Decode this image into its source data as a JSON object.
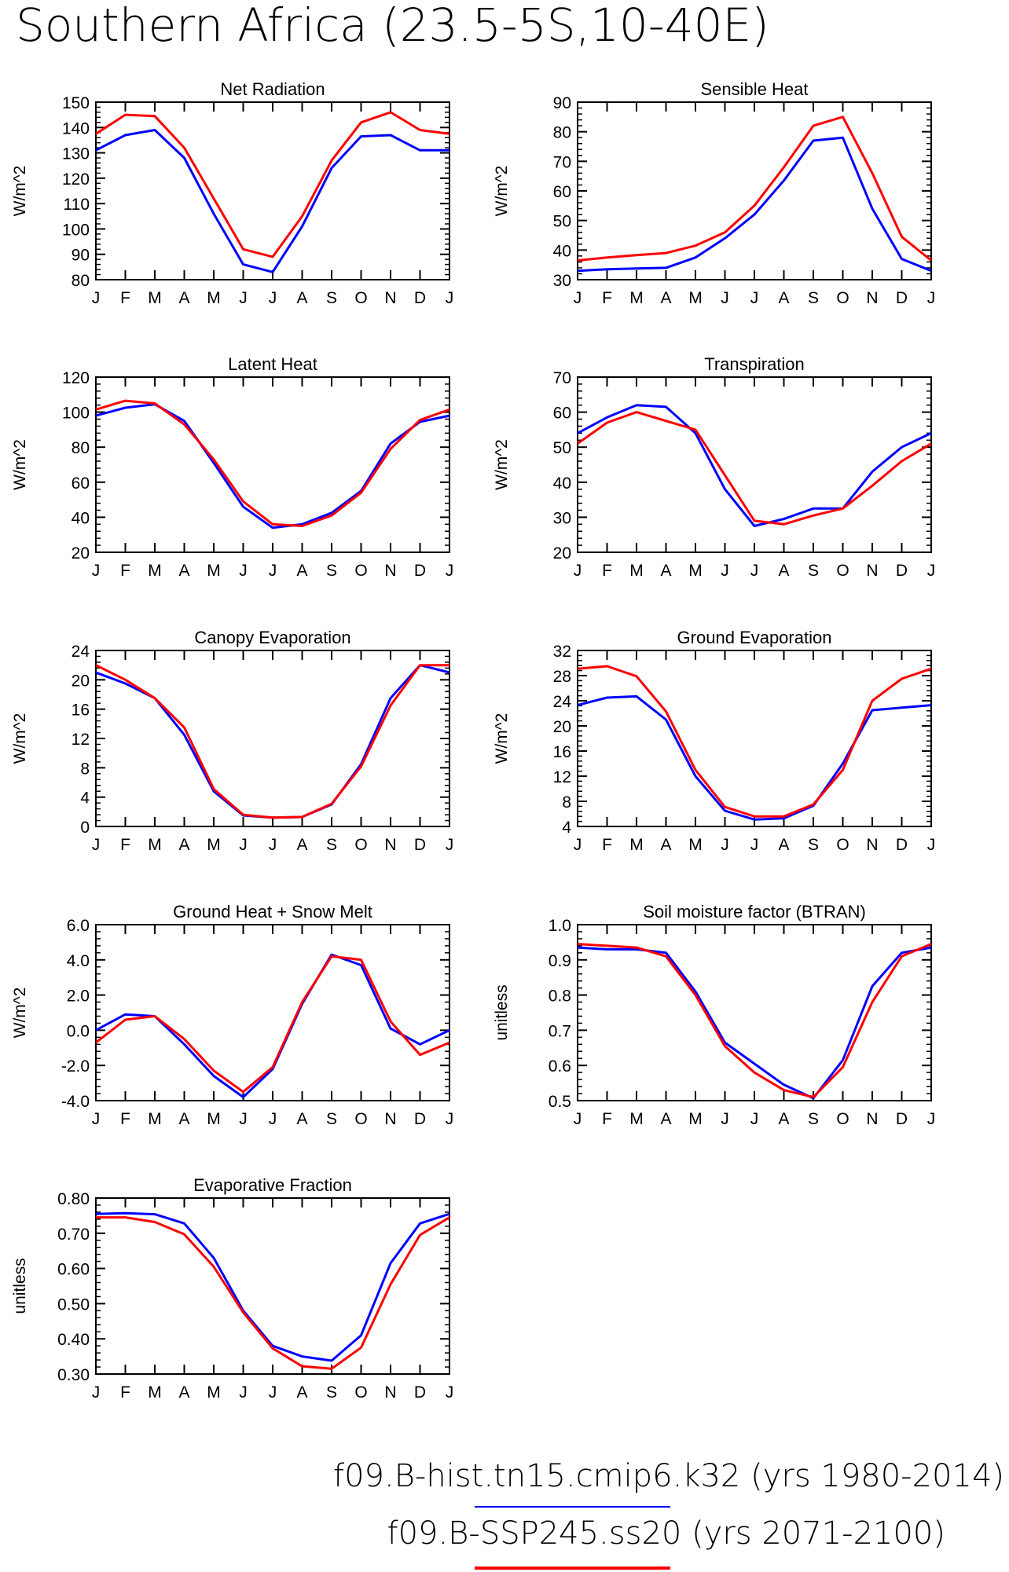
{
  "title": "Southern Africa (23.5-5S,10-40E)",
  "months": [
    "J",
    "F",
    "M",
    "A",
    "M",
    "J",
    "J",
    "A",
    "S",
    "O",
    "N",
    "D",
    "J"
  ],
  "legend": [
    {
      "label": "f09.B-hist.tn15.cmip6.k32 (yrs 1980-2014)",
      "color": "#0000ff"
    },
    {
      "label": "f09.B-SSP245.ss20 (yrs 2071-2100)",
      "color": "#ff0000"
    }
  ],
  "chart_data": [
    {
      "type": "line",
      "title": "Net Radiation",
      "ylabel": "W/m^2",
      "ylim": [
        80,
        150
      ],
      "yticks": [
        80,
        90,
        100,
        110,
        120,
        130,
        140,
        150
      ],
      "ytick_labels": [
        "80",
        "90",
        "100",
        "110",
        "120",
        "130",
        "140",
        "150"
      ],
      "series": [
        {
          "color": "#0000ff",
          "values": [
            131,
            137,
            139,
            128,
            106,
            86,
            83,
            101,
            124,
            136.5,
            137,
            131,
            131
          ]
        },
        {
          "color": "#ff0000",
          "values": [
            137.5,
            145,
            144.5,
            132,
            112,
            92,
            89,
            105,
            127,
            142,
            146,
            139,
            137.5
          ]
        }
      ]
    },
    {
      "type": "line",
      "title": "Sensible Heat",
      "ylabel": "W/m^2",
      "ylim": [
        30,
        90
      ],
      "yticks": [
        30,
        40,
        50,
        60,
        70,
        80,
        90
      ],
      "ytick_labels": [
        "30",
        "40",
        "50",
        "60",
        "70",
        "80",
        "90"
      ],
      "series": [
        {
          "color": "#0000ff",
          "values": [
            33,
            33.5,
            33.8,
            34,
            37.5,
            44,
            52,
            63.5,
            77,
            78,
            54,
            37,
            33
          ]
        },
        {
          "color": "#ff0000",
          "values": [
            36.5,
            37.5,
            38.3,
            39,
            41.5,
            46,
            55,
            68,
            82,
            85,
            66,
            44.5,
            36.5
          ]
        }
      ]
    },
    {
      "type": "line",
      "title": "Latent Heat",
      "ylabel": "W/m^2",
      "ylim": [
        20,
        120
      ],
      "yticks": [
        20,
        40,
        60,
        80,
        100,
        120
      ],
      "ytick_labels": [
        "20",
        "40",
        "60",
        "80",
        "100",
        "120"
      ],
      "series": [
        {
          "color": "#0000ff",
          "values": [
            98,
            102.5,
            104.5,
            95,
            71,
            46,
            34,
            36,
            42.5,
            55,
            82,
            94.5,
            98
          ]
        },
        {
          "color": "#ff0000",
          "values": [
            101.5,
            106.5,
            105,
            93,
            73,
            49,
            36,
            35,
            41,
            54,
            79,
            95.5,
            101.5
          ]
        }
      ]
    },
    {
      "type": "line",
      "title": "Transpiration",
      "ylabel": "W/m^2",
      "ylim": [
        20,
        70
      ],
      "yticks": [
        20,
        30,
        40,
        50,
        60,
        70
      ],
      "ytick_labels": [
        "20",
        "30",
        "40",
        "50",
        "60",
        "70"
      ],
      "series": [
        {
          "color": "#0000ff",
          "values": [
            54,
            58.5,
            62,
            61.5,
            54,
            38,
            27.5,
            29.5,
            32.5,
            32.5,
            43,
            50,
            54
          ]
        },
        {
          "color": "#ff0000",
          "values": [
            51,
            57,
            60,
            57.5,
            55,
            42,
            29,
            28,
            30.5,
            32.5,
            39,
            46,
            51
          ]
        }
      ]
    },
    {
      "type": "line",
      "title": "Canopy Evaporation",
      "ylabel": "W/m^2",
      "ylim": [
        0,
        24
      ],
      "yticks": [
        0,
        4,
        8,
        12,
        16,
        20,
        24
      ],
      "ytick_labels": [
        "0",
        "4",
        "8",
        "12",
        "16",
        "20",
        "24"
      ],
      "series": [
        {
          "color": "#0000ff",
          "values": [
            21,
            19.5,
            17.5,
            12.5,
            4.8,
            1.5,
            1.2,
            1.3,
            3.0,
            8.5,
            17.5,
            22,
            21
          ]
        },
        {
          "color": "#ff0000",
          "values": [
            22,
            20,
            17.5,
            13.5,
            5.1,
            1.6,
            1.2,
            1.3,
            3.1,
            8.2,
            16.5,
            22,
            22
          ]
        }
      ]
    },
    {
      "type": "line",
      "title": "Ground Evaporation",
      "ylabel": "W/m^2",
      "ylim": [
        4,
        32
      ],
      "yticks": [
        4,
        8,
        12,
        16,
        20,
        24,
        28,
        32
      ],
      "ytick_labels": [
        "4",
        "8",
        "12",
        "16",
        "20",
        "24",
        "28",
        "32"
      ],
      "series": [
        {
          "color": "#0000ff",
          "values": [
            23.3,
            24.5,
            24.7,
            21,
            12,
            6.5,
            5.1,
            5.3,
            7.3,
            14,
            22.5,
            22.9,
            23.3
          ]
        },
        {
          "color": "#ff0000",
          "values": [
            29.1,
            29.5,
            27.9,
            22.3,
            13,
            7.1,
            5.6,
            5.6,
            7.5,
            13,
            24,
            27.5,
            29.1
          ]
        }
      ]
    },
    {
      "type": "line",
      "title": "Ground Heat + Snow Melt",
      "ylabel": "W/m^2",
      "ylim": [
        -4,
        6
      ],
      "yticks": [
        -4,
        -2,
        0,
        2,
        4,
        6
      ],
      "ytick_labels": [
        "-4.0",
        "-2.0",
        "0.0",
        "2.0",
        "4.0",
        "6.0"
      ],
      "series": [
        {
          "color": "#0000ff",
          "values": [
            0.0,
            0.9,
            0.8,
            -0.8,
            -2.6,
            -3.8,
            -2.2,
            1.5,
            4.3,
            3.7,
            0.1,
            -0.8,
            0.0
          ]
        },
        {
          "color": "#ff0000",
          "values": [
            -0.7,
            0.6,
            0.8,
            -0.5,
            -2.3,
            -3.5,
            -2.1,
            1.6,
            4.2,
            4.0,
            0.5,
            -1.4,
            -0.7
          ]
        }
      ]
    },
    {
      "type": "line",
      "title": "Soil moisture factor (BTRAN)",
      "ylabel": "unitless",
      "ylim": [
        0.5,
        1.0
      ],
      "yticks": [
        0.5,
        0.6,
        0.7,
        0.8,
        0.9,
        1.0
      ],
      "ytick_labels": [
        "0.5",
        "0.6",
        "0.7",
        "0.8",
        "0.9",
        "1.0"
      ],
      "series": [
        {
          "color": "#0000ff",
          "values": [
            0.935,
            0.93,
            0.93,
            0.92,
            0.81,
            0.665,
            0.605,
            0.545,
            0.507,
            0.615,
            0.825,
            0.92,
            0.935
          ]
        },
        {
          "color": "#ff0000",
          "values": [
            0.945,
            0.94,
            0.935,
            0.91,
            0.8,
            0.655,
            0.58,
            0.53,
            0.51,
            0.595,
            0.78,
            0.91,
            0.945
          ]
        }
      ]
    },
    {
      "type": "line",
      "title": "Evaporative Fraction",
      "ylabel": "unitless",
      "ylim": [
        0.3,
        0.8
      ],
      "yticks": [
        0.3,
        0.4,
        0.5,
        0.6,
        0.7,
        0.8
      ],
      "ytick_labels": [
        "0.30",
        "0.40",
        "0.50",
        "0.60",
        "0.70",
        "0.80"
      ],
      "series": [
        {
          "color": "#0000ff",
          "values": [
            0.755,
            0.757,
            0.754,
            0.728,
            0.63,
            0.48,
            0.38,
            0.35,
            0.338,
            0.41,
            0.615,
            0.728,
            0.755
          ]
        },
        {
          "color": "#ff0000",
          "values": [
            0.745,
            0.745,
            0.732,
            0.697,
            0.605,
            0.475,
            0.373,
            0.322,
            0.315,
            0.375,
            0.555,
            0.695,
            0.745
          ]
        }
      ]
    }
  ]
}
